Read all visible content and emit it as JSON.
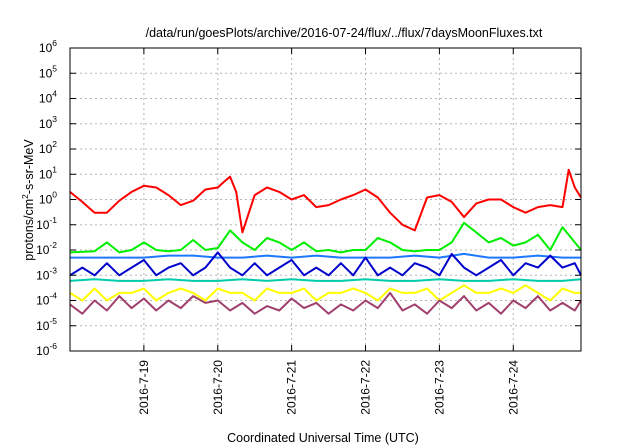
{
  "chart_data": {
    "type": "line",
    "title": "/data/run/goesPlots/archive/2016-07-24/flux/../flux/7daysMoonFluxes.txt",
    "xlabel": "Coordinated Universal Time (UTC)",
    "ylabel": "protons/cm2-s-sr-MeV",
    "ylabel_parts": [
      "protons/cm",
      "2",
      "-s-sr-MeV"
    ],
    "y_scale": "log",
    "ylim": [
      1e-06,
      1000000
    ],
    "xlim": [
      "2016-07-18T00:00",
      "2016-07-24T22:00"
    ],
    "y_ticks": [
      {
        "base": "10",
        "exp": "-6",
        "value": 1e-06
      },
      {
        "base": "10",
        "exp": "-5",
        "value": 1e-05
      },
      {
        "base": "10",
        "exp": "-4",
        "value": 0.0001
      },
      {
        "base": "10",
        "exp": "-3",
        "value": 0.001
      },
      {
        "base": "10",
        "exp": "-2",
        "value": 0.01
      },
      {
        "base": "10",
        "exp": "-1",
        "value": 0.1
      },
      {
        "base": "10",
        "exp": "0",
        "value": 1
      },
      {
        "base": "10",
        "exp": "1",
        "value": 10
      },
      {
        "base": "10",
        "exp": "2",
        "value": 100
      },
      {
        "base": "10",
        "exp": "3",
        "value": 1000
      },
      {
        "base": "10",
        "exp": "4",
        "value": 10000
      },
      {
        "base": "10",
        "exp": "5",
        "value": 100000
      },
      {
        "base": "10",
        "exp": "6",
        "value": 1000000
      }
    ],
    "x_ticks": [
      {
        "label": "2016-7-19",
        "value": "2016-07-19T00:00"
      },
      {
        "label": "2016-7-20",
        "value": "2016-07-20T00:00"
      },
      {
        "label": "2016-7-21",
        "value": "2016-07-21T00:00"
      },
      {
        "label": "2016-7-22",
        "value": "2016-07-22T00:00"
      },
      {
        "label": "2016-7-23",
        "value": "2016-07-23T00:00"
      },
      {
        "label": "2016-7-24",
        "value": "2016-07-24T00:00"
      }
    ],
    "grid": true,
    "series": [
      {
        "color": "#ff0000",
        "x": [
          "2016-07-18T00:00",
          "2016-07-18T04:00",
          "2016-07-18T08:00",
          "2016-07-18T12:00",
          "2016-07-18T16:00",
          "2016-07-18T20:00",
          "2016-07-19T00:00",
          "2016-07-19T04:00",
          "2016-07-19T08:00",
          "2016-07-19T12:00",
          "2016-07-19T16:00",
          "2016-07-19T20:00",
          "2016-07-20T00:00",
          "2016-07-20T02:00",
          "2016-07-20T04:00",
          "2016-07-20T06:00",
          "2016-07-20T08:00",
          "2016-07-20T12:00",
          "2016-07-20T16:00",
          "2016-07-20T20:00",
          "2016-07-21T00:00",
          "2016-07-21T04:00",
          "2016-07-21T08:00",
          "2016-07-21T12:00",
          "2016-07-21T16:00",
          "2016-07-21T20:00",
          "2016-07-22T00:00",
          "2016-07-22T04:00",
          "2016-07-22T08:00",
          "2016-07-22T12:00",
          "2016-07-22T16:00",
          "2016-07-22T20:00",
          "2016-07-23T00:00",
          "2016-07-23T04:00",
          "2016-07-23T08:00",
          "2016-07-23T12:00",
          "2016-07-23T16:00",
          "2016-07-23T20:00",
          "2016-07-24T00:00",
          "2016-07-24T04:00",
          "2016-07-24T08:00",
          "2016-07-24T12:00",
          "2016-07-24T16:00",
          "2016-07-24T18:00",
          "2016-07-24T20:00",
          "2016-07-24T22:00"
        ],
        "values": [
          2,
          0.8,
          0.3,
          0.3,
          0.9,
          2,
          3.5,
          3,
          1.5,
          0.6,
          0.9,
          2.5,
          3,
          5,
          8,
          2,
          0.05,
          1.5,
          3,
          2,
          1,
          1.5,
          0.5,
          0.6,
          1,
          1.5,
          2.5,
          1.2,
          0.3,
          0.1,
          0.06,
          1.2,
          1.5,
          0.8,
          0.2,
          0.7,
          1,
          1,
          0.5,
          0.3,
          0.5,
          0.6,
          0.5,
          15,
          3,
          1.2
        ]
      },
      {
        "color": "#00ee00",
        "x": [
          "2016-07-18T00:00",
          "2016-07-18T08:00",
          "2016-07-18T12:00",
          "2016-07-18T16:00",
          "2016-07-18T20:00",
          "2016-07-19T00:00",
          "2016-07-19T04:00",
          "2016-07-19T08:00",
          "2016-07-19T12:00",
          "2016-07-19T16:00",
          "2016-07-19T20:00",
          "2016-07-20T00:00",
          "2016-07-20T04:00",
          "2016-07-20T08:00",
          "2016-07-20T12:00",
          "2016-07-20T16:00",
          "2016-07-20T20:00",
          "2016-07-21T00:00",
          "2016-07-21T04:00",
          "2016-07-21T08:00",
          "2016-07-21T12:00",
          "2016-07-21T16:00",
          "2016-07-21T20:00",
          "2016-07-22T00:00",
          "2016-07-22T04:00",
          "2016-07-22T08:00",
          "2016-07-22T12:00",
          "2016-07-22T16:00",
          "2016-07-22T20:00",
          "2016-07-23T00:00",
          "2016-07-23T04:00",
          "2016-07-23T08:00",
          "2016-07-23T12:00",
          "2016-07-23T16:00",
          "2016-07-23T20:00",
          "2016-07-24T00:00",
          "2016-07-24T04:00",
          "2016-07-24T08:00",
          "2016-07-24T12:00",
          "2016-07-24T16:00",
          "2016-07-24T20:00",
          "2016-07-24T22:00"
        ],
        "values": [
          0.008,
          0.009,
          0.02,
          0.008,
          0.01,
          0.02,
          0.01,
          0.009,
          0.01,
          0.025,
          0.01,
          0.012,
          0.06,
          0.02,
          0.01,
          0.03,
          0.02,
          0.01,
          0.02,
          0.009,
          0.01,
          0.008,
          0.01,
          0.01,
          0.03,
          0.02,
          0.01,
          0.009,
          0.01,
          0.01,
          0.02,
          0.12,
          0.05,
          0.02,
          0.03,
          0.015,
          0.02,
          0.04,
          0.01,
          0.08,
          0.02,
          0.01
        ]
      },
      {
        "color": "#0000cc",
        "x": [
          "2016-07-18T00:00",
          "2016-07-18T04:00",
          "2016-07-18T08:00",
          "2016-07-18T12:00",
          "2016-07-18T16:00",
          "2016-07-18T20:00",
          "2016-07-19T00:00",
          "2016-07-19T04:00",
          "2016-07-19T08:00",
          "2016-07-19T12:00",
          "2016-07-19T16:00",
          "2016-07-19T20:00",
          "2016-07-20T00:00",
          "2016-07-20T04:00",
          "2016-07-20T08:00",
          "2016-07-20T12:00",
          "2016-07-20T16:00",
          "2016-07-20T20:00",
          "2016-07-21T00:00",
          "2016-07-21T04:00",
          "2016-07-21T08:00",
          "2016-07-21T12:00",
          "2016-07-21T16:00",
          "2016-07-21T20:00",
          "2016-07-22T00:00",
          "2016-07-22T04:00",
          "2016-07-22T08:00",
          "2016-07-22T12:00",
          "2016-07-22T16:00",
          "2016-07-22T20:00",
          "2016-07-23T00:00",
          "2016-07-23T04:00",
          "2016-07-23T08:00",
          "2016-07-23T12:00",
          "2016-07-23T16:00",
          "2016-07-23T20:00",
          "2016-07-24T00:00",
          "2016-07-24T04:00",
          "2016-07-24T08:00",
          "2016-07-24T12:00",
          "2016-07-24T16:00",
          "2016-07-24T20:00",
          "2016-07-24T22:00"
        ],
        "values": [
          0.001,
          0.002,
          0.001,
          0.003,
          0.001,
          0.002,
          0.004,
          0.001,
          0.002,
          0.003,
          0.001,
          0.002,
          0.008,
          0.002,
          0.001,
          0.003,
          0.001,
          0.002,
          0.004,
          0.001,
          0.002,
          0.001,
          0.003,
          0.001,
          0.005,
          0.001,
          0.002,
          0.001,
          0.003,
          0.002,
          0.001,
          0.007,
          0.002,
          0.001,
          0.002,
          0.004,
          0.001,
          0.003,
          0.002,
          0.006,
          0.002,
          0.003,
          0.001
        ]
      },
      {
        "color": "#1e78ff",
        "x": [
          "2016-07-18T00:00",
          "2016-07-18T08:00",
          "2016-07-18T16:00",
          "2016-07-19T00:00",
          "2016-07-19T08:00",
          "2016-07-19T16:00",
          "2016-07-20T00:00",
          "2016-07-20T08:00",
          "2016-07-20T16:00",
          "2016-07-21T00:00",
          "2016-07-21T08:00",
          "2016-07-21T16:00",
          "2016-07-22T00:00",
          "2016-07-22T08:00",
          "2016-07-22T16:00",
          "2016-07-23T00:00",
          "2016-07-23T08:00",
          "2016-07-23T16:00",
          "2016-07-24T00:00",
          "2016-07-24T08:00",
          "2016-07-24T16:00",
          "2016-07-24T22:00"
        ],
        "values": [
          0.005,
          0.005,
          0.005,
          0.005,
          0.006,
          0.006,
          0.005,
          0.005,
          0.006,
          0.005,
          0.006,
          0.005,
          0.005,
          0.005,
          0.006,
          0.005,
          0.007,
          0.005,
          0.005,
          0.006,
          0.005,
          0.005
        ]
      },
      {
        "color": "#00ccaa",
        "x": [
          "2016-07-18T00:00",
          "2016-07-18T08:00",
          "2016-07-18T16:00",
          "2016-07-19T00:00",
          "2016-07-19T08:00",
          "2016-07-19T16:00",
          "2016-07-20T00:00",
          "2016-07-20T08:00",
          "2016-07-20T16:00",
          "2016-07-21T00:00",
          "2016-07-21T08:00",
          "2016-07-21T16:00",
          "2016-07-22T00:00",
          "2016-07-22T08:00",
          "2016-07-22T16:00",
          "2016-07-23T00:00",
          "2016-07-23T08:00",
          "2016-07-23T16:00",
          "2016-07-24T00:00",
          "2016-07-24T08:00",
          "2016-07-24T16:00",
          "2016-07-24T22:00"
        ],
        "values": [
          0.0006,
          0.0007,
          0.0006,
          0.0006,
          0.0007,
          0.0006,
          0.0006,
          0.0007,
          0.0006,
          0.0007,
          0.0006,
          0.0006,
          0.0007,
          0.0006,
          0.0006,
          0.0007,
          0.0006,
          0.0006,
          0.0007,
          0.0006,
          0.0006,
          0.0007
        ]
      },
      {
        "color": "#ffff00",
        "x": [
          "2016-07-18T00:00",
          "2016-07-18T04:00",
          "2016-07-18T08:00",
          "2016-07-18T12:00",
          "2016-07-18T16:00",
          "2016-07-18T20:00",
          "2016-07-19T00:00",
          "2016-07-19T04:00",
          "2016-07-19T08:00",
          "2016-07-19T12:00",
          "2016-07-19T16:00",
          "2016-07-19T20:00",
          "2016-07-20T00:00",
          "2016-07-20T04:00",
          "2016-07-20T08:00",
          "2016-07-20T12:00",
          "2016-07-20T16:00",
          "2016-07-20T20:00",
          "2016-07-21T00:00",
          "2016-07-21T04:00",
          "2016-07-21T08:00",
          "2016-07-21T12:00",
          "2016-07-21T16:00",
          "2016-07-21T20:00",
          "2016-07-22T00:00",
          "2016-07-22T04:00",
          "2016-07-22T08:00",
          "2016-07-22T12:00",
          "2016-07-22T16:00",
          "2016-07-22T20:00",
          "2016-07-23T00:00",
          "2016-07-23T04:00",
          "2016-07-23T08:00",
          "2016-07-23T12:00",
          "2016-07-23T16:00",
          "2016-07-23T20:00",
          "2016-07-24T00:00",
          "2016-07-24T04:00",
          "2016-07-24T08:00",
          "2016-07-24T12:00",
          "2016-07-24T16:00",
          "2016-07-24T20:00",
          "2016-07-24T22:00"
        ],
        "values": [
          0.0002,
          0.0001,
          0.0003,
          0.0001,
          0.0002,
          0.0002,
          0.0003,
          0.0001,
          0.0002,
          0.0003,
          0.0002,
          0.0001,
          0.0003,
          0.0002,
          0.0002,
          0.0001,
          0.0003,
          0.0002,
          0.0002,
          0.0003,
          0.0001,
          0.0002,
          0.0002,
          0.0003,
          0.0002,
          0.0001,
          0.0003,
          0.0002,
          0.0002,
          0.0003,
          0.0001,
          0.0002,
          0.0004,
          0.0002,
          0.0002,
          0.0003,
          0.0002,
          0.0004,
          0.0002,
          0.0001,
          0.0003,
          0.0002,
          0.0002
        ]
      },
      {
        "color": "#a0406e",
        "x": [
          "2016-07-18T00:00",
          "2016-07-18T04:00",
          "2016-07-18T08:00",
          "2016-07-18T12:00",
          "2016-07-18T16:00",
          "2016-07-18T20:00",
          "2016-07-19T00:00",
          "2016-07-19T04:00",
          "2016-07-19T08:00",
          "2016-07-19T12:00",
          "2016-07-19T16:00",
          "2016-07-19T20:00",
          "2016-07-20T00:00",
          "2016-07-20T04:00",
          "2016-07-20T08:00",
          "2016-07-20T12:00",
          "2016-07-20T16:00",
          "2016-07-20T20:00",
          "2016-07-21T00:00",
          "2016-07-21T04:00",
          "2016-07-21T08:00",
          "2016-07-21T12:00",
          "2016-07-21T16:00",
          "2016-07-21T20:00",
          "2016-07-22T00:00",
          "2016-07-22T04:00",
          "2016-07-22T08:00",
          "2016-07-22T12:00",
          "2016-07-22T16:00",
          "2016-07-22T20:00",
          "2016-07-23T00:00",
          "2016-07-23T04:00",
          "2016-07-23T08:00",
          "2016-07-23T12:00",
          "2016-07-23T16:00",
          "2016-07-23T20:00",
          "2016-07-24T00:00",
          "2016-07-24T04:00",
          "2016-07-24T08:00",
          "2016-07-24T12:00",
          "2016-07-24T16:00",
          "2016-07-24T20:00",
          "2016-07-24T22:00"
        ],
        "values": [
          7e-05,
          3e-05,
          0.0001,
          4e-05,
          0.00015,
          5e-05,
          0.00012,
          4e-05,
          0.0001,
          5e-05,
          0.00015,
          8e-05,
          0.0001,
          4e-05,
          8e-05,
          3e-05,
          6e-05,
          4e-05,
          0.00012,
          5e-05,
          8e-05,
          3e-05,
          7e-05,
          4e-05,
          0.0001,
          5e-05,
          0.0002,
          4e-05,
          7e-05,
          3e-05,
          0.0001,
          5e-05,
          0.00015,
          4e-05,
          8e-05,
          3e-05,
          0.0001,
          5e-05,
          0.00015,
          4e-05,
          8e-05,
          4e-05,
          0.0001
        ]
      }
    ]
  }
}
